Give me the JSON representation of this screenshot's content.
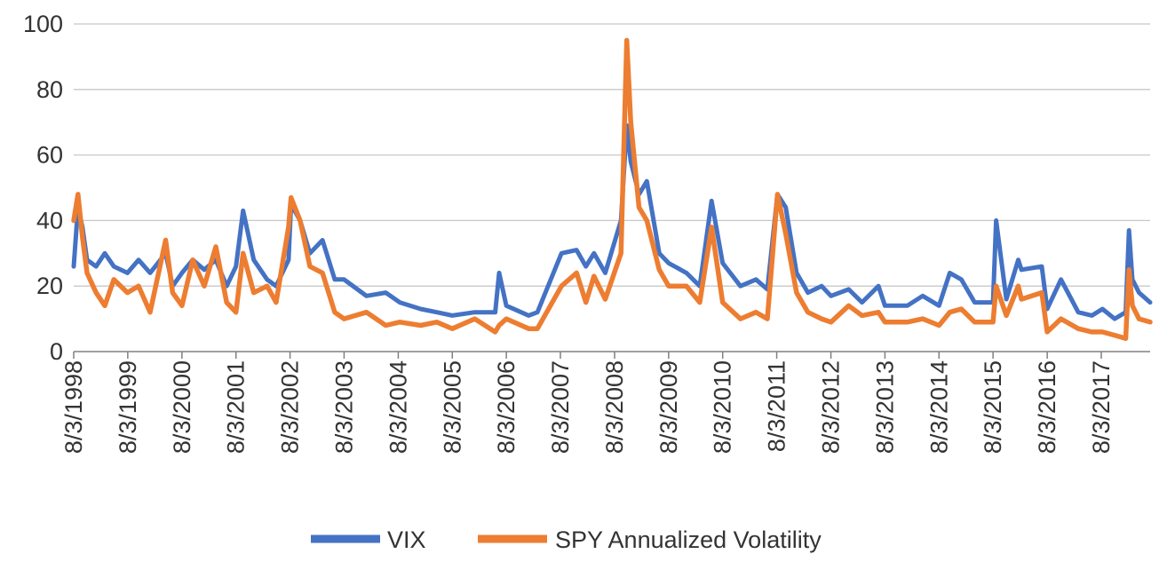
{
  "chart_data": {
    "type": "line",
    "title": "",
    "xlabel": "",
    "ylabel": "",
    "ylim": [
      0,
      100
    ],
    "yticks": [
      0,
      20,
      40,
      60,
      80,
      100
    ],
    "xlim": [
      "1998-08-03",
      "2018-06-29"
    ],
    "x_tick_labels": [
      "8/3/1998",
      "8/3/1999",
      "8/3/2000",
      "8/3/2001",
      "8/3/2002",
      "8/3/2003",
      "8/3/2004",
      "8/3/2005",
      "8/3/2006",
      "8/3/2007",
      "8/3/2008",
      "8/3/2009",
      "8/3/2010",
      "8/3/2011",
      "8/3/2012",
      "8/3/2013",
      "8/3/2014",
      "8/3/2015",
      "8/3/2016",
      "8/3/2017"
    ],
    "grid": true,
    "legend_position": "bottom",
    "x": [
      "1998-08-03",
      "1998-09-01",
      "1998-10-01",
      "1998-11-01",
      "1999-01-01",
      "1999-03-01",
      "1999-05-01",
      "1999-08-01",
      "1999-10-15",
      "2000-01-01",
      "2000-04-15",
      "2000-06-01",
      "2000-08-03",
      "2000-10-15",
      "2001-01-01",
      "2001-03-20",
      "2001-06-01",
      "2001-08-03",
      "2001-09-20",
      "2001-12-01",
      "2002-03-01",
      "2002-05-01",
      "2002-07-24",
      "2002-08-10",
      "2002-10-10",
      "2002-12-15",
      "2003-03-10",
      "2003-06-01",
      "2003-08-03",
      "2004-01-01",
      "2004-05-10",
      "2004-08-13",
      "2005-01-01",
      "2005-04-20",
      "2005-08-03",
      "2006-01-01",
      "2006-05-20",
      "2006-06-15",
      "2006-08-03",
      "2007-01-01",
      "2007-03-01",
      "2007-08-10",
      "2007-11-20",
      "2008-01-22",
      "2008-03-17",
      "2008-06-01",
      "2008-09-15",
      "2008-10-24",
      "2008-11-20",
      "2009-01-15",
      "2009-03-09",
      "2009-06-01",
      "2009-08-03",
      "2009-12-01",
      "2010-03-01",
      "2010-05-20",
      "2010-08-03",
      "2010-12-01",
      "2011-03-16",
      "2011-06-01",
      "2011-08-08",
      "2011-10-03",
      "2011-12-15",
      "2012-03-01",
      "2012-06-01",
      "2012-08-03",
      "2012-12-01",
      "2013-03-01",
      "2013-06-20",
      "2013-08-03",
      "2014-01-01",
      "2014-04-15",
      "2014-08-03",
      "2014-10-15",
      "2015-01-01",
      "2015-04-01",
      "2015-08-03",
      "2015-08-24",
      "2015-11-01",
      "2016-01-20",
      "2016-02-11",
      "2016-06-27",
      "2016-08-03",
      "2016-11-04",
      "2017-03-01",
      "2017-06-01",
      "2017-08-11",
      "2017-11-01",
      "2018-01-15",
      "2018-02-06",
      "2018-03-01",
      "2018-04-15",
      "2018-06-29"
    ],
    "series": [
      {
        "name": "VIX",
        "color": "#4472c4",
        "values": [
          26,
          44,
          38,
          28,
          26,
          30,
          26,
          24,
          28,
          24,
          30,
          20,
          24,
          28,
          25,
          28,
          20,
          26,
          43,
          28,
          22,
          20,
          28,
          45,
          40,
          30,
          34,
          22,
          22,
          17,
          18,
          15,
          13,
          12,
          11,
          12,
          12,
          24,
          14,
          11,
          12,
          30,
          31,
          26,
          30,
          24,
          40,
          69,
          58,
          48,
          52,
          30,
          27,
          24,
          20,
          46,
          27,
          20,
          22,
          19,
          48,
          44,
          24,
          18,
          20,
          17,
          19,
          15,
          20,
          14,
          14,
          17,
          14,
          24,
          22,
          15,
          15,
          40,
          16,
          28,
          25,
          26,
          13,
          22,
          12,
          11,
          13,
          10,
          12,
          37,
          22,
          18,
          15
        ]
      },
      {
        "name": "SPY Annualized Volatility",
        "color": "#ed7d31",
        "values": [
          40,
          48,
          35,
          24,
          18,
          14,
          22,
          18,
          20,
          12,
          34,
          18,
          14,
          28,
          20,
          32,
          15,
          12,
          30,
          18,
          20,
          15,
          38,
          47,
          40,
          26,
          24,
          12,
          10,
          12,
          8,
          9,
          8,
          9,
          7,
          10,
          6,
          8,
          10,
          7,
          7,
          20,
          24,
          15,
          23,
          16,
          30,
          95,
          70,
          44,
          40,
          25,
          20,
          20,
          15,
          38,
          15,
          10,
          12,
          10,
          48,
          36,
          18,
          12,
          10,
          9,
          14,
          11,
          12,
          9,
          9,
          10,
          8,
          12,
          13,
          9,
          9,
          20,
          11,
          20,
          16,
          18,
          6,
          10,
          7,
          6,
          6,
          5,
          4,
          25,
          14,
          10,
          9
        ]
      }
    ]
  },
  "legend": {
    "vix_label": "VIX",
    "spy_label": "SPY Annualized Volatility"
  }
}
